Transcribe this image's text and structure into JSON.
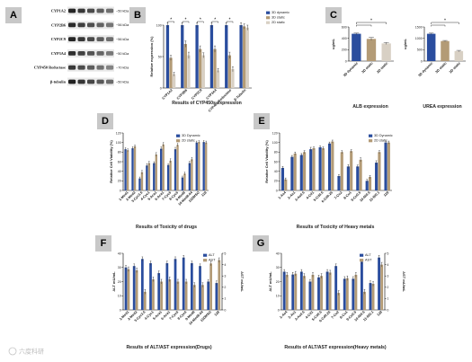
{
  "watermark": "六度科研",
  "colors": {
    "dyn": "#2a4d9e",
    "stat": "#b39b76",
    "static2": "#d8d0c4"
  },
  "panels": {
    "A": "A",
    "B": "B",
    "C": "C",
    "D": "D",
    "E": "E",
    "F": "F",
    "G": "G"
  },
  "blot": {
    "rows": [
      {
        "label": "CYP1A2",
        "kda": "~50 kDa"
      },
      {
        "label": "CYP2B6",
        "kda": "~56 kDa"
      },
      {
        "label": "CYP2C9",
        "kda": "~56 kDa"
      },
      {
        "label": "CYP3A4",
        "kda": "~50 kDa"
      },
      {
        "label": "CYP450 Reductase",
        "kda": "~70 kDa"
      },
      {
        "label": "β-tubulin",
        "kda": "~50 kDa"
      }
    ]
  },
  "chart_data": [
    {
      "id": "B",
      "type": "bar",
      "title": "",
      "xlabel": "Results of CYP450s expression",
      "ylabel": "Relative expression (%)",
      "ylim": [
        0,
        100
      ],
      "yticks": [
        0,
        50,
        100
      ],
      "yticklabels": [
        "0",
        "50",
        "100"
      ],
      "categories": [
        "CYP1A2",
        "CYP2B6",
        "CYP2C9",
        "CYP3A4",
        "CYP450 Reductase",
        "β-Tubulin"
      ],
      "series": [
        {
          "name": "3D dynamic",
          "values": [
            100,
            100,
            100,
            100,
            100,
            100
          ],
          "errors": [
            4,
            4,
            4,
            4,
            4,
            4
          ]
        },
        {
          "name": "3D static",
          "values": [
            48,
            70,
            62,
            62,
            52,
            98
          ],
          "errors": [
            4,
            5,
            5,
            5,
            5,
            4
          ]
        },
        {
          "name": "2D static",
          "values": [
            22,
            52,
            52,
            28,
            30,
            96
          ],
          "errors": [
            3,
            5,
            4,
            3,
            4,
            4
          ]
        }
      ],
      "significance": [
        "*",
        "*",
        "*",
        "*",
        "*"
      ],
      "legend": "top-right"
    },
    {
      "id": "C1",
      "type": "bar",
      "title": "",
      "xlabel": "ALB expression",
      "ylabel": "ug/mL",
      "ylim": [
        0,
        600
      ],
      "yticks": [
        0,
        200,
        400,
        600
      ],
      "yticklabels": [
        "0",
        "200",
        "400",
        "600"
      ],
      "categories": [
        "3D dynamic",
        "3D static",
        "2D static"
      ],
      "series": [
        {
          "values": [
            480,
            390,
            310
          ],
          "errors": [
            12,
            25,
            18
          ]
        }
      ],
      "significance": [
        "*"
      ]
    },
    {
      "id": "C2",
      "type": "bar",
      "title": "",
      "xlabel": "UREA expression",
      "ylabel": "ug/mL",
      "ylim": [
        0,
        1500
      ],
      "yticks": [
        0,
        500,
        1000,
        1500
      ],
      "yticklabels": [
        "0",
        "500",
        "1000",
        "1500"
      ],
      "categories": [
        "3D dynamic",
        "3D static",
        "2D static"
      ],
      "series": [
        {
          "values": [
            1200,
            880,
            440
          ],
          "errors": [
            30,
            25,
            30
          ]
        }
      ],
      "significance": [
        "*"
      ]
    },
    {
      "id": "D",
      "type": "bar",
      "title": "",
      "xlabel": "Results of Toxicity of drugs",
      "ylabel": "Relative Cell Viability (%)",
      "ylim": [
        0,
        120
      ],
      "yticks": [
        0,
        20,
        40,
        60,
        80,
        100,
        120
      ],
      "yticklabels": [
        "0",
        "20",
        "40",
        "60",
        "80",
        "100",
        "120"
      ],
      "categories": [
        "1-Med1",
        "2-Med2",
        "3-Cyc3.5",
        "4-Cyc1",
        "5-Aca1",
        "6-Aca1",
        "7-Cyc5",
        "8-Cyc5",
        "9-Med8",
        "10-Med8.04",
        "11DMSO",
        "128"
      ],
      "series": [
        {
          "name": "3D Dynamic",
          "values": [
            86,
            88,
            25,
            52,
            57,
            87,
            53,
            86,
            27,
            57,
            100,
            101
          ],
          "errors": [
            3,
            3,
            3,
            4,
            3,
            4,
            3,
            4,
            3,
            4,
            3,
            3
          ]
        },
        {
          "name": "2D static",
          "values": [
            84,
            92,
            38,
            57,
            75,
            96,
            62,
            95,
            35,
            65,
            101,
            100
          ],
          "errors": [
            3,
            3,
            4,
            4,
            4,
            4,
            4,
            3,
            3,
            4,
            3,
            3
          ]
        }
      ],
      "legend": "top-right"
    },
    {
      "id": "E",
      "type": "bar",
      "title": "",
      "xlabel": "Results of Toxicity of Heavy metals",
      "ylabel": "Relative Cell Viability (%)",
      "ylim": [
        0,
        120
      ],
      "yticks": [
        0,
        20,
        40,
        60,
        80,
        100,
        120
      ],
      "yticklabels": [
        "0",
        "20",
        "40",
        "60",
        "80",
        "100",
        "120"
      ],
      "categories": [
        "1-As4",
        "2-As1",
        "3-As0.5",
        "4-Cd1",
        "5-Cd0.5",
        "6-Cd0.25",
        "7-Cu2",
        "8-Cu1",
        "9-Cu0.5",
        "10-Ni0.5",
        "11-Ni0.1",
        "128"
      ],
      "series": [
        {
          "name": "3D Dynamic",
          "values": [
            47,
            70,
            74,
            86,
            90,
            98,
            30,
            50,
            50,
            20,
            58,
            100
          ],
          "errors": [
            3,
            3,
            3,
            4,
            3,
            3,
            3,
            4,
            3,
            3,
            4,
            3
          ]
        },
        {
          "name": "2D static",
          "values": [
            23,
            77,
            80,
            88,
            88,
            102,
            80,
            82,
            64,
            28,
            80,
            100
          ],
          "errors": [
            3,
            3,
            3,
            3,
            3,
            3,
            3,
            3,
            4,
            3,
            3,
            3
          ]
        }
      ],
      "legend": "top-right"
    },
    {
      "id": "F",
      "type": "bar",
      "title": "",
      "xlabel": "Results of ALT/AST expression(Drugs)",
      "ylabel": "ALT mU/mL",
      "ylabel_right": "AST mU/mL",
      "ylim": [
        0,
        40
      ],
      "yticks": [
        0,
        10,
        20,
        30,
        40
      ],
      "yticklabels": [
        "0",
        "10",
        "20",
        "30",
        "40"
      ],
      "ylim_right": [
        0,
        5
      ],
      "yticks_right": [
        0,
        1,
        2,
        3,
        4,
        5
      ],
      "yticklabels_right": [
        "0",
        "1",
        "2",
        "3",
        "4",
        "5"
      ],
      "categories": [
        "1-Med1",
        "2-Med2",
        "3-Cyc3.5",
        "4-Cyc1",
        "5-Aca1",
        "6-Aca1",
        "7-Cyc5",
        "8-Cyc5",
        "9-Med8",
        "10-Med8.04",
        "11DMSO",
        "128"
      ],
      "series": [
        {
          "name": "ALT",
          "values": [
            30,
            31,
            36,
            33,
            26,
            33,
            36,
            37,
            33,
            31,
            20,
            19
          ],
          "errors": [
            1.5,
            1.5,
            1.5,
            1.5,
            1.5,
            1.5,
            1.5,
            1.5,
            1.5,
            1.5,
            1.5,
            1.5
          ]
        },
        {
          "name": "AST",
          "values": [
            3.6,
            3.5,
            1.6,
            2.7,
            2.5,
            2.7,
            2.5,
            2.5,
            2.2,
            2.2,
            4.1,
            4.4
          ],
          "errors": [
            0.2,
            0.2,
            0.2,
            0.2,
            0.2,
            0.2,
            0.2,
            0.2,
            0.2,
            0.2,
            0.2,
            0.2
          ],
          "axis": "right"
        }
      ],
      "legend": "top-right"
    },
    {
      "id": "G",
      "type": "bar",
      "title": "",
      "xlabel": "Results of ALT/AST expression(Heavy metals)",
      "ylabel": "ALT mU/mL",
      "ylabel_right": "AST mU/mL",
      "ylim": [
        0,
        40
      ],
      "yticks": [
        0,
        10,
        20,
        30,
        40
      ],
      "yticklabels": [
        "0",
        "10",
        "20",
        "30",
        "40"
      ],
      "ylim_right": [
        0,
        5
      ],
      "yticks_right": [
        0,
        1,
        2,
        3,
        4,
        5
      ],
      "yticklabels_right": [
        "0",
        "1",
        "2",
        "3",
        "4",
        "5"
      ],
      "categories": [
        "1-As4",
        "2-As1",
        "3-As0.5",
        "4-Cd1",
        "5-Cd0.5",
        "6-Cd0.25",
        "7-Cu2",
        "8-Cu1",
        "9-Cu0.5",
        "10-Ni0.5",
        "11-Ni0.1",
        "128"
      ],
      "series": [
        {
          "name": "ALT",
          "values": [
            27,
            25,
            27,
            20,
            23,
            27,
            31,
            22,
            22,
            34,
            19,
            37
          ],
          "errors": [
            1.5,
            1.5,
            1.5,
            1.5,
            1.5,
            1.5,
            1.5,
            1.5,
            1.5,
            1.5,
            1.5,
            1.5
          ]
        },
        {
          "name": "AST",
          "values": [
            3.1,
            3.2,
            3.0,
            3.1,
            3.0,
            3.3,
            1.5,
            2.8,
            3.1,
            1.6,
            2.3,
            4.0
          ],
          "errors": [
            0.2,
            0.2,
            0.2,
            0.2,
            0.2,
            0.2,
            0.2,
            0.2,
            0.2,
            0.2,
            0.2,
            0.2
          ],
          "axis": "right"
        }
      ],
      "legend": "top-right"
    }
  ]
}
